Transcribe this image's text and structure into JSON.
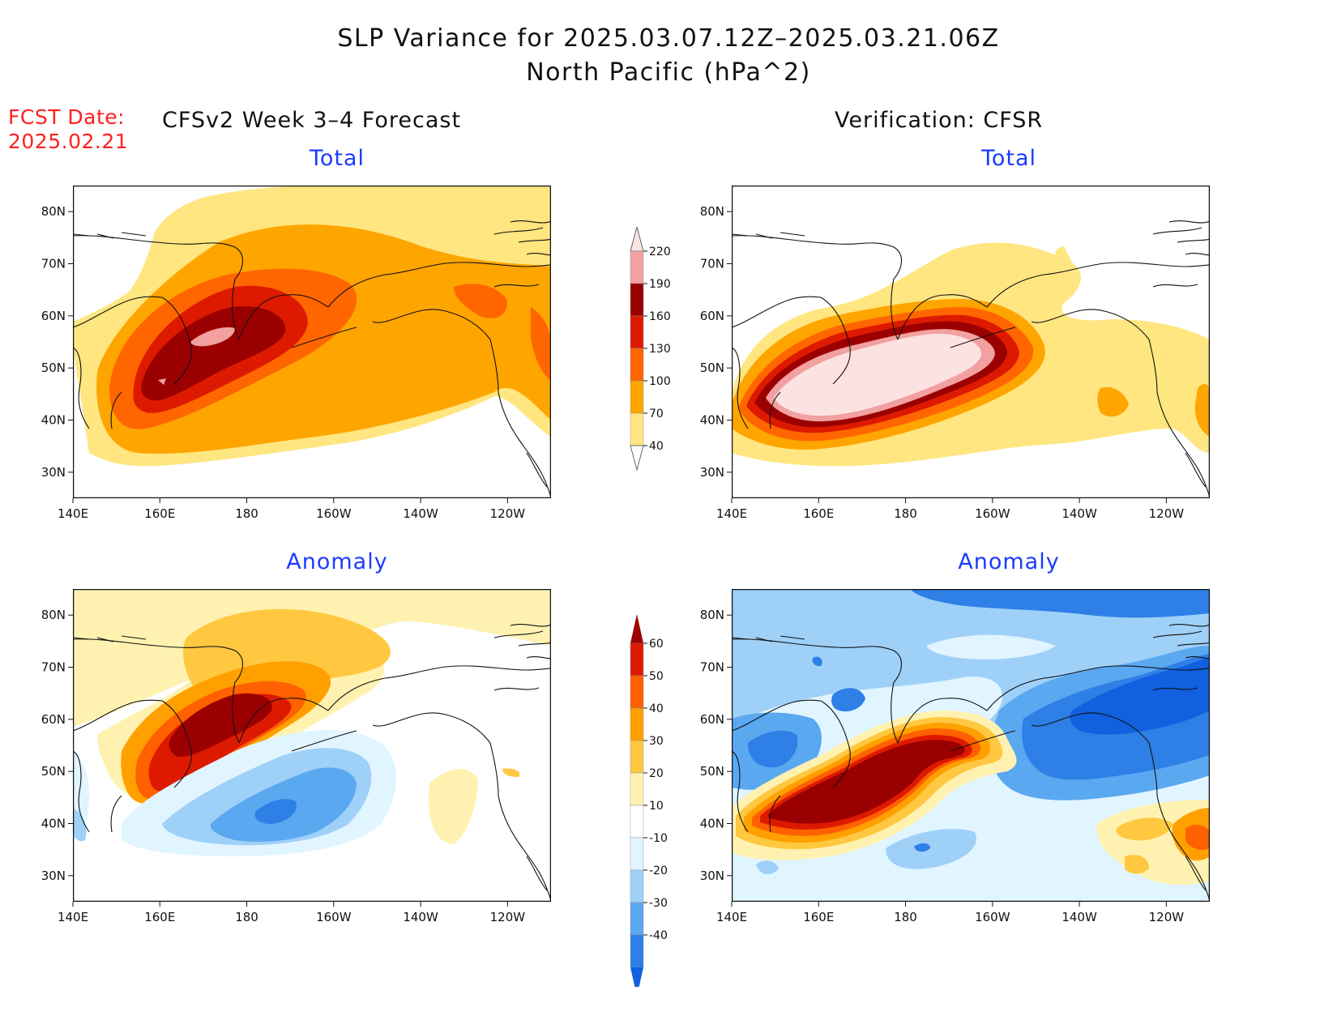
{
  "header": {
    "title_line1": "SLP Variance for 2025.03.07.12Z–2025.03.21.06Z",
    "title_line2": "North Pacific (hPa^2)",
    "fcst_label": "FCST Date:",
    "fcst_date": "2025.02.21"
  },
  "columns": {
    "left": "CFSv2 Week 3–4 Forecast",
    "right": "Verification: CFSR"
  },
  "panels": {
    "total_label": "Total",
    "anomaly_label": "Anomaly"
  },
  "axes": {
    "lon_labels": [
      "140E",
      "160E",
      "180",
      "160W",
      "140W",
      "120W"
    ],
    "lat_labels": [
      "80N",
      "70N",
      "60N",
      "50N",
      "40N",
      "30N"
    ]
  },
  "colorbars": {
    "total": {
      "levels": [
        "40",
        "70",
        "100",
        "130",
        "160",
        "190",
        "220"
      ],
      "colors": [
        "#ffe680",
        "#ffa500",
        "#ff6600",
        "#dd1a00",
        "#9b0000",
        "#f2a0a0",
        "#fde2e2"
      ]
    },
    "anomaly": {
      "levels": [
        "-40",
        "-30",
        "-20",
        "-10",
        "10",
        "20",
        "30",
        "40",
        "50",
        "60"
      ],
      "colors": [
        "#1060e0",
        "#2e7fe6",
        "#5aa8f0",
        "#9fd0f8",
        "#e0f5ff",
        "#ffffff",
        "#fff2b0",
        "#ffc840",
        "#ffa000",
        "#ff6000",
        "#dd1a00",
        "#9b0000"
      ]
    }
  }
}
